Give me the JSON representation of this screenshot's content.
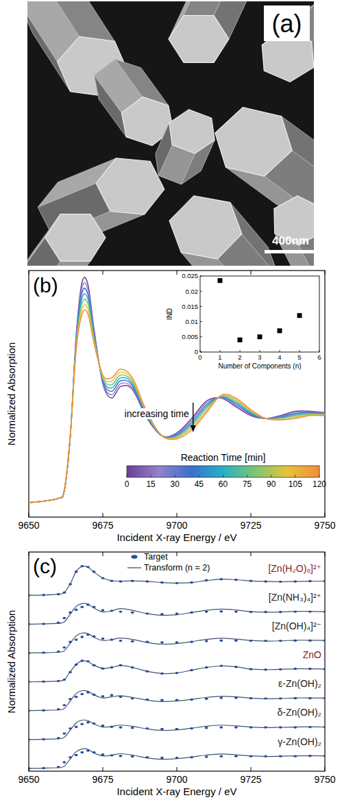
{
  "chart_data": [
    {
      "type": "image",
      "panel_label": "(a)",
      "scale_bar": "400nm"
    },
    {
      "type": "line",
      "panel_label": "(b)",
      "x_label": "Incident X-ray Energy / eV",
      "y_label": "Normalized Absorption",
      "x": [
        9650,
        9655,
        9660,
        9662,
        9664,
        9666,
        9668,
        9670,
        9672,
        9675,
        9678,
        9681,
        9685,
        9690,
        9695,
        9700,
        9705,
        9710,
        9715,
        9720,
        9725,
        9730,
        9735,
        9740,
        9745,
        9750
      ],
      "xlim": [
        9650,
        9750
      ],
      "xticks": [
        9650,
        9675,
        9700,
        9725,
        9750
      ],
      "ylim": [
        -0.1,
        1.6
      ],
      "tick_labels": "x",
      "series": [
        {
          "color": "#6a3d9a",
          "values": [
            0,
            0.01,
            0.03,
            0.08,
            0.45,
            1.15,
            1.52,
            1.5,
            1.2,
            0.82,
            0.72,
            0.8,
            0.78,
            0.58,
            0.46,
            0.48,
            0.58,
            0.7,
            0.72,
            0.66,
            0.6,
            0.58,
            0.6,
            0.63,
            0.63,
            0.62
          ]
        },
        {
          "color": "#9383c9",
          "values": [
            0,
            0.01,
            0.03,
            0.082,
            0.452,
            1.133,
            1.483,
            1.467,
            1.183,
            0.83,
            0.743,
            0.82,
            0.793,
            0.587,
            0.46,
            0.473,
            0.567,
            0.687,
            0.723,
            0.67,
            0.607,
            0.58,
            0.595,
            0.622,
            0.625,
            0.617
          ]
        },
        {
          "color": "#3a6fd0",
          "values": [
            0,
            0.01,
            0.03,
            0.083,
            0.453,
            1.117,
            1.447,
            1.433,
            1.167,
            0.84,
            0.767,
            0.84,
            0.807,
            0.593,
            0.46,
            0.467,
            0.553,
            0.673,
            0.727,
            0.68,
            0.613,
            0.58,
            0.59,
            0.613,
            0.62,
            0.613
          ]
        },
        {
          "color": "#27b0c4",
          "values": [
            0,
            0.01,
            0.03,
            0.085,
            0.455,
            1.1,
            1.41,
            1.4,
            1.15,
            0.85,
            0.79,
            0.86,
            0.82,
            0.6,
            0.46,
            0.46,
            0.54,
            0.66,
            0.73,
            0.69,
            0.62,
            0.58,
            0.585,
            0.605,
            0.615,
            0.61
          ]
        },
        {
          "color": "#7cc576",
          "values": [
            0,
            0.01,
            0.03,
            0.087,
            0.457,
            1.083,
            1.373,
            1.367,
            1.133,
            0.86,
            0.813,
            0.88,
            0.833,
            0.607,
            0.46,
            0.453,
            0.527,
            0.647,
            0.733,
            0.7,
            0.627,
            0.58,
            0.58,
            0.597,
            0.61,
            0.607
          ]
        },
        {
          "color": "#e6c33a",
          "values": [
            0,
            0.01,
            0.03,
            0.088,
            0.458,
            1.067,
            1.337,
            1.333,
            1.117,
            0.87,
            0.837,
            0.9,
            0.847,
            0.613,
            0.46,
            0.447,
            0.513,
            0.633,
            0.737,
            0.71,
            0.633,
            0.58,
            0.575,
            0.588,
            0.605,
            0.603
          ]
        },
        {
          "color": "#f28c38",
          "values": [
            0,
            0.01,
            0.03,
            0.09,
            0.46,
            1.05,
            1.3,
            1.3,
            1.1,
            0.88,
            0.86,
            0.92,
            0.86,
            0.62,
            0.46,
            0.44,
            0.5,
            0.62,
            0.74,
            0.72,
            0.64,
            0.58,
            0.57,
            0.58,
            0.6,
            0.6
          ]
        }
      ],
      "annotations": [
        {
          "text": "increasing time"
        }
      ],
      "colorbar": {
        "label": "Reaction Time [min]",
        "lim": [
          0,
          120
        ],
        "ticks": [
          0,
          15,
          30,
          45,
          60,
          75,
          90,
          105,
          120
        ]
      }
    },
    {
      "type": "scatter",
      "x_label": "Number of Components (n)",
      "y_label": "IND",
      "x": [
        1,
        2,
        3,
        4,
        5
      ],
      "values": [
        0.0235,
        0.004,
        0.005,
        0.007,
        0.012
      ],
      "xlim": [
        0,
        6
      ],
      "xticks": [
        0,
        1,
        2,
        3,
        4,
        5,
        6
      ],
      "ylim": [
        0,
        0.025
      ],
      "yticks": [
        0,
        0.005,
        0.01,
        0.015,
        0.02,
        0.025
      ],
      "marker": "square",
      "color": "#000000"
    },
    {
      "type": "line",
      "panel_label": "(c)",
      "x_label": "Incident X-ray Energy / eV",
      "y_label": "Normalized Absorption",
      "x": [
        9650,
        9655,
        9660,
        9662,
        9664,
        9666,
        9668,
        9670,
        9672,
        9675,
        9678,
        9681,
        9685,
        9690,
        9695,
        9700,
        9705,
        9710,
        9715,
        9720,
        9725,
        9730,
        9735,
        9740,
        9745,
        9750
      ],
      "xlim": [
        9650,
        9750
      ],
      "xticks": [
        9650,
        9675,
        9700,
        9725,
        9750
      ],
      "tick_labels": "x",
      "legend": "top",
      "series": [
        {
          "name": "Target",
          "color": "#1f4fa3",
          "type": "scatter",
          "marker": "dot"
        },
        {
          "name": "Transform (n = 2)",
          "color": "#44506a",
          "type": "line",
          "line_style": "solid"
        }
      ],
      "rows": [
        {
          "label": "[Zn(H₂O)₆]²⁺",
          "color": "#8b1a1a",
          "ylim": [
            -6.34,
            1.56
          ],
          "target": [
            0,
            0.01,
            0.04,
            0.1,
            0.4,
            0.85,
            1.05,
            1.02,
            0.85,
            0.62,
            0.52,
            0.5,
            0.52,
            0.5,
            0.46,
            0.44,
            0.46,
            0.54,
            0.58,
            0.56,
            0.52,
            0.5,
            0.49,
            0.5,
            0.51,
            0.51
          ],
          "transform": [
            0,
            0.01,
            0.04,
            0.1,
            0.41,
            0.86,
            1.04,
            1.01,
            0.84,
            0.62,
            0.53,
            0.51,
            0.52,
            0.5,
            0.46,
            0.44,
            0.46,
            0.53,
            0.58,
            0.56,
            0.52,
            0.5,
            0.49,
            0.5,
            0.51,
            0.51
          ]
        },
        {
          "label": "[Zn(NH₃)₄]²⁺",
          "color": "#222222",
          "ylim": [
            -5.3,
            2.6
          ],
          "target": [
            0,
            0.01,
            0.05,
            0.22,
            0.42,
            0.52,
            0.62,
            0.7,
            0.62,
            0.5,
            0.48,
            0.45,
            0.42,
            0.38,
            0.36,
            0.38,
            0.42,
            0.45,
            0.46,
            0.45,
            0.44,
            0.44,
            0.44,
            0.45,
            0.45,
            0.45
          ],
          "transform": [
            0,
            0.01,
            0.03,
            0.08,
            0.36,
            0.64,
            0.74,
            0.72,
            0.58,
            0.44,
            0.48,
            0.56,
            0.5,
            0.38,
            0.32,
            0.34,
            0.42,
            0.5,
            0.54,
            0.51,
            0.45,
            0.43,
            0.44,
            0.46,
            0.46,
            0.45
          ]
        },
        {
          "label": "[Zn(OH)₄]²⁻",
          "color": "#222222",
          "ylim": [
            -4.26,
            3.64
          ],
          "target": [
            0,
            0.01,
            0.05,
            0.2,
            0.4,
            0.48,
            0.58,
            0.66,
            0.6,
            0.52,
            0.48,
            0.44,
            0.42,
            0.4,
            0.38,
            0.38,
            0.4,
            0.43,
            0.45,
            0.45,
            0.44,
            0.44,
            0.44,
            0.45,
            0.45,
            0.45
          ],
          "transform": [
            0,
            0.01,
            0.03,
            0.08,
            0.35,
            0.62,
            0.72,
            0.7,
            0.57,
            0.45,
            0.48,
            0.54,
            0.49,
            0.38,
            0.32,
            0.34,
            0.41,
            0.49,
            0.53,
            0.5,
            0.45,
            0.43,
            0.44,
            0.46,
            0.46,
            0.45
          ]
        },
        {
          "label": "ZnO",
          "color": "#8b1a1a",
          "ylim": [
            -3.22,
            4.68
          ],
          "target": [
            0,
            0.01,
            0.03,
            0.08,
            0.35,
            0.62,
            0.76,
            0.74,
            0.6,
            0.48,
            0.52,
            0.6,
            0.52,
            0.38,
            0.3,
            0.32,
            0.42,
            0.52,
            0.58,
            0.54,
            0.46,
            0.44,
            0.45,
            0.47,
            0.47,
            0.46
          ],
          "transform": [
            0,
            0.01,
            0.03,
            0.08,
            0.36,
            0.63,
            0.75,
            0.73,
            0.6,
            0.49,
            0.52,
            0.59,
            0.52,
            0.38,
            0.3,
            0.32,
            0.42,
            0.52,
            0.57,
            0.54,
            0.46,
            0.44,
            0.45,
            0.47,
            0.47,
            0.46
          ]
        },
        {
          "label": "ε-Zn(OH)₂",
          "color": "#222222",
          "ylim": [
            -2.18,
            5.72
          ],
          "target": [
            0,
            0.01,
            0.05,
            0.2,
            0.42,
            0.5,
            0.6,
            0.66,
            0.58,
            0.52,
            0.56,
            0.5,
            0.44,
            0.4,
            0.38,
            0.38,
            0.4,
            0.43,
            0.46,
            0.46,
            0.45,
            0.44,
            0.44,
            0.45,
            0.45,
            0.45
          ],
          "transform": [
            0,
            0.01,
            0.03,
            0.08,
            0.35,
            0.62,
            0.72,
            0.7,
            0.57,
            0.46,
            0.5,
            0.54,
            0.48,
            0.38,
            0.33,
            0.35,
            0.41,
            0.48,
            0.52,
            0.5,
            0.45,
            0.43,
            0.44,
            0.46,
            0.46,
            0.45
          ]
        },
        {
          "label": "δ-Zn(OH)₂",
          "color": "#222222",
          "ylim": [
            -1.14,
            6.76
          ],
          "target": [
            0,
            0.01,
            0.05,
            0.22,
            0.4,
            0.46,
            0.56,
            0.62,
            0.58,
            0.5,
            0.46,
            0.44,
            0.42,
            0.4,
            0.38,
            0.38,
            0.4,
            0.42,
            0.44,
            0.44,
            0.44,
            0.44,
            0.44,
            0.44,
            0.45,
            0.45
          ],
          "transform": [
            0,
            0.01,
            0.03,
            0.08,
            0.34,
            0.6,
            0.7,
            0.68,
            0.56,
            0.45,
            0.47,
            0.52,
            0.48,
            0.38,
            0.33,
            0.35,
            0.41,
            0.48,
            0.52,
            0.49,
            0.45,
            0.43,
            0.44,
            0.45,
            0.46,
            0.45
          ]
        },
        {
          "label": "γ-Zn(OH)₂",
          "color": "#222222",
          "ylim": [
            -0.1,
            7.8
          ],
          "target": [
            0,
            0.01,
            0.05,
            0.22,
            0.4,
            0.48,
            0.58,
            0.64,
            0.58,
            0.5,
            0.47,
            0.45,
            0.43,
            0.4,
            0.38,
            0.38,
            0.4,
            0.42,
            0.44,
            0.44,
            0.44,
            0.44,
            0.44,
            0.44,
            0.45,
            0.45
          ],
          "transform": [
            0,
            0.01,
            0.03,
            0.08,
            0.34,
            0.6,
            0.7,
            0.69,
            0.56,
            0.45,
            0.48,
            0.53,
            0.48,
            0.38,
            0.33,
            0.35,
            0.41,
            0.48,
            0.52,
            0.49,
            0.45,
            0.43,
            0.44,
            0.45,
            0.46,
            0.45
          ]
        }
      ]
    }
  ]
}
